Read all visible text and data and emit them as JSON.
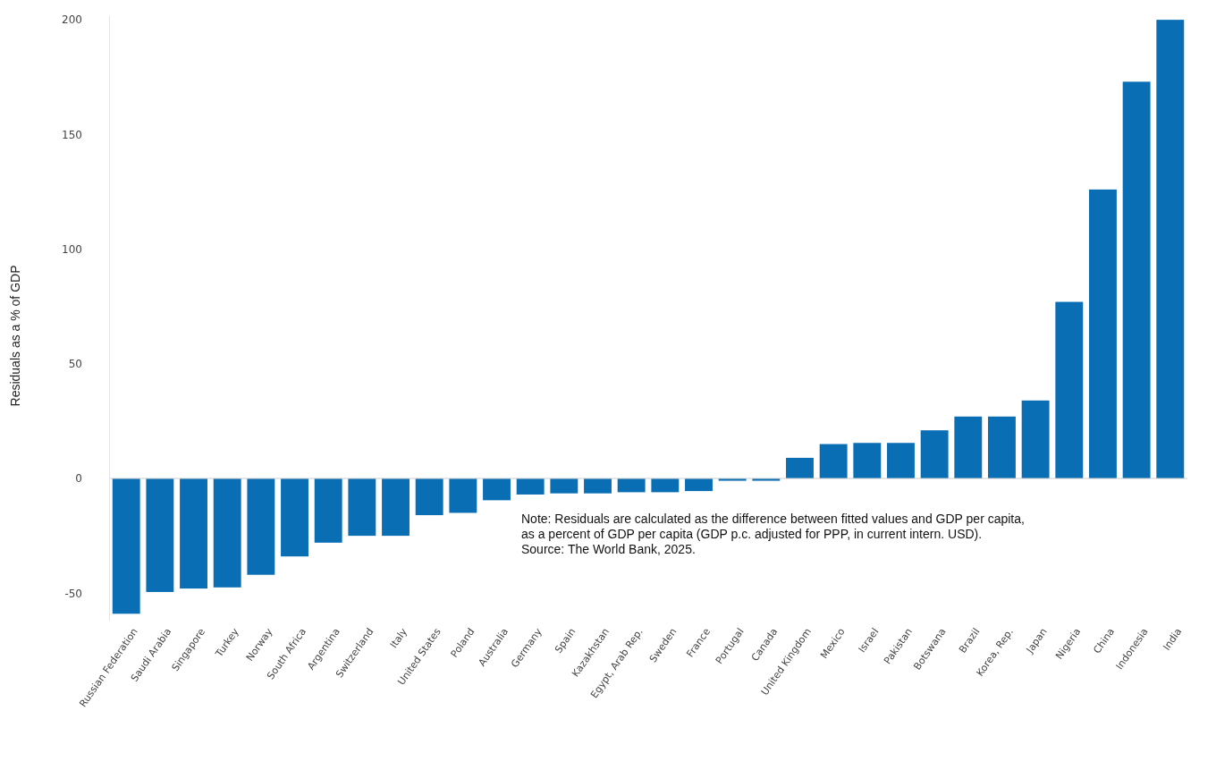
{
  "chart_data": {
    "type": "bar",
    "ylabel": "Residuals as a % of GDP",
    "categories": [
      "Russian Federation",
      "Saudi Arabia",
      "Singapore",
      "Turkey",
      "Norway",
      "South Africa",
      "Argentina",
      "Switzerland",
      "Italy",
      "United States",
      "Poland",
      "Australia",
      "Germany",
      "Spain",
      "Kazakhstan",
      "Egypt, Arab Rep.",
      "Sweden",
      "France",
      "Portugal",
      "Canada",
      "United Kingdom",
      "Mexico",
      "Israel",
      "Pakistan",
      "Botswana",
      "Brazil",
      "Korea, Rep.",
      "Japan",
      "Nigeria",
      "China",
      "Indonesia",
      "India"
    ],
    "values": [
      -59,
      -49.5,
      -48,
      -47.5,
      -42,
      -34,
      -28,
      -25,
      -25,
      -16,
      -15,
      -9.5,
      -7,
      -6.5,
      -6.5,
      -6,
      -6,
      -5.5,
      -1,
      -1,
      9,
      15,
      15.5,
      15.5,
      21,
      27,
      27,
      34,
      77,
      126,
      173,
      200
    ],
    "color": "#0a6eb4",
    "ylim": [
      -62,
      202
    ],
    "yticks": [
      -50,
      0,
      50,
      100,
      150,
      200
    ],
    "annotations": [
      "Note: Residuals are calculated as the difference between fitted values and GDP per capita,\nas a percent of GDP per capita (GDP p.c. adjusted for PPP, in current intern. USD).\nSource: The World Bank, 2025."
    ]
  }
}
